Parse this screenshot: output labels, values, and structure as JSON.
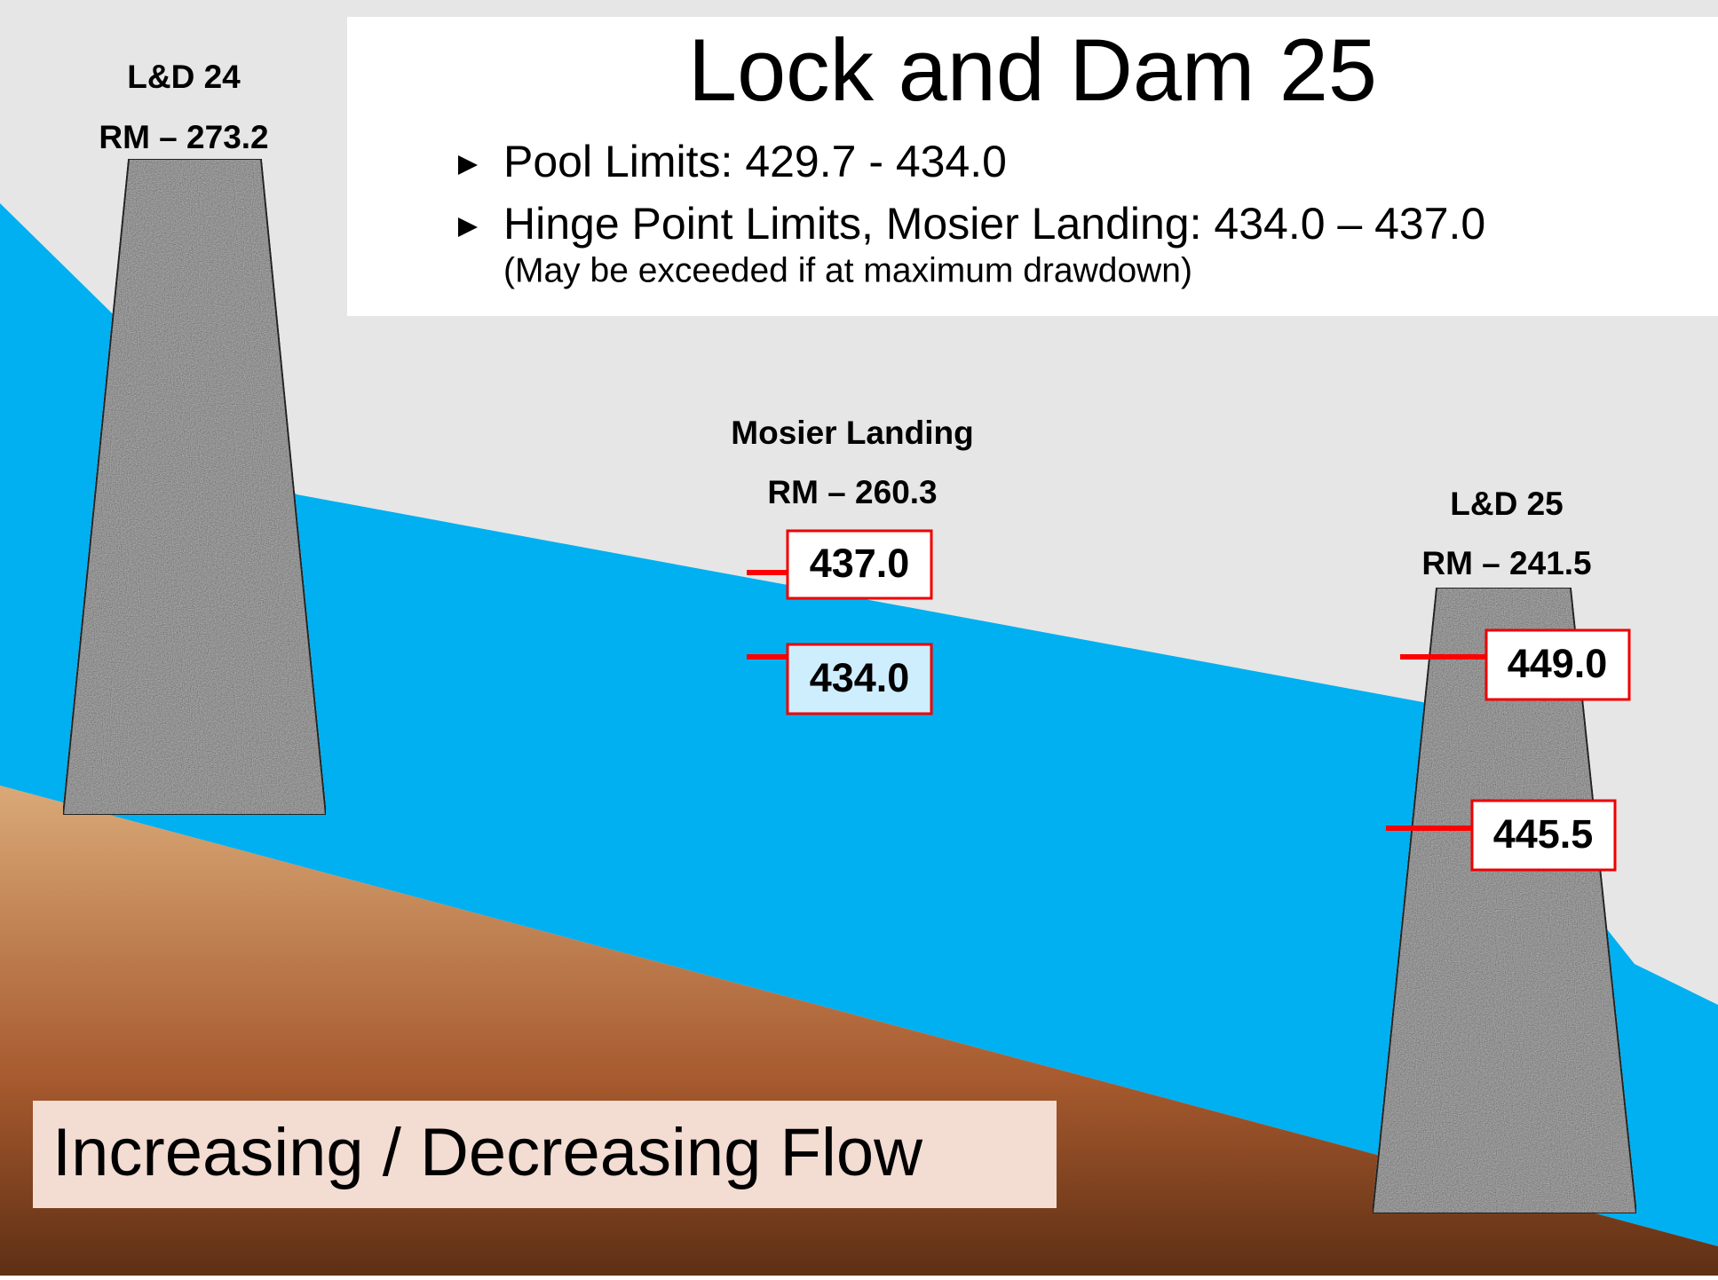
{
  "title": "Lock and Dam 25",
  "bullets": [
    {
      "text": "Pool Limits: 429.7 - 434.0"
    },
    {
      "text": "Hinge Point Limits, Mosier Landing: 434.0 – 437.0",
      "note": "(May be exceeded if at maximum drawdown)"
    }
  ],
  "sites": [
    {
      "name": "L&D 24",
      "river_mile": "RM – 273.2"
    },
    {
      "name": "Mosier Landing",
      "river_mile": "RM – 260.3",
      "levels": [
        "437.0",
        "434.0"
      ]
    },
    {
      "name": "L&D 25",
      "river_mile": "RM – 241.5",
      "levels": [
        "449.0",
        "445.5"
      ]
    }
  ],
  "footer": "Increasing / Decreasing Flow"
}
